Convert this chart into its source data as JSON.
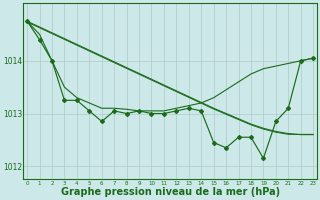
{
  "hours": [
    0,
    1,
    2,
    3,
    4,
    5,
    6,
    7,
    8,
    9,
    10,
    11,
    12,
    13,
    14,
    15,
    16,
    17,
    18,
    19,
    20,
    21,
    22,
    23
  ],
  "jagged_series": [
    1014.75,
    1014.4,
    1014.0,
    1013.25,
    1013.25,
    1013.05,
    1012.85,
    1013.05,
    1013.0,
    1013.05,
    1013.0,
    1013.0,
    1013.05,
    1013.1,
    1013.05,
    1012.45,
    1012.35,
    1012.55,
    1012.55,
    1012.15,
    1012.85,
    1013.1,
    1014.0,
    1014.05
  ],
  "straight_line1": [
    1014.75,
    1014.64,
    1014.53,
    1014.42,
    1014.31,
    1014.2,
    1014.09,
    1013.98,
    1013.87,
    1013.76,
    1013.65,
    1013.54,
    1013.43,
    1013.32,
    1013.21,
    1013.1,
    1013.0,
    1012.9,
    1012.8,
    1012.72,
    1012.66,
    1012.62,
    1012.6,
    1012.6
  ],
  "straight_line2": [
    1014.75,
    1014.64,
    1014.53,
    1014.42,
    1014.31,
    1014.2,
    1014.09,
    1013.98,
    1013.87,
    1013.76,
    1013.65,
    1013.54,
    1013.43,
    1013.32,
    1013.21,
    1013.1,
    1013.0,
    1012.9,
    1012.8,
    1012.72,
    1012.66,
    1012.62,
    1012.62,
    1012.62
  ],
  "rising_line": [
    1014.75,
    1014.5,
    1014.0,
    1013.5,
    1013.3,
    1013.2,
    1013.1,
    1013.1,
    1013.08,
    1013.05,
    1013.05,
    1013.05,
    1013.1,
    1013.15,
    1013.2,
    1013.3,
    1013.45,
    1013.6,
    1013.75,
    1013.85,
    1013.9,
    1013.95,
    1014.0,
    1014.05
  ],
  "color": "#1a6b1a",
  "bg_color": "#cce8e8",
  "grid_color": "#b0c8c8",
  "ylim": [
    1011.75,
    1015.1
  ],
  "yticks": [
    1012,
    1013,
    1014
  ],
  "xlabel": "Graphe pression niveau de la mer (hPa)",
  "xlabel_fontsize": 7.0,
  "marker": "D",
  "markersize": 2.0
}
